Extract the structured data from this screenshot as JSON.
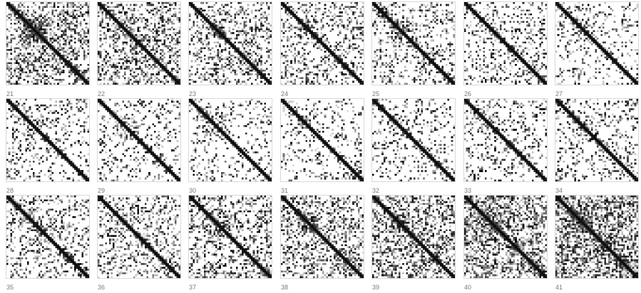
{
  "gallery": {
    "tile_labels": [
      "21",
      "22",
      "23",
      "24",
      "25",
      "26",
      "27",
      "28",
      "29",
      "30",
      "31",
      "32",
      "33",
      "34",
      "35",
      "36",
      "37",
      "38",
      "39",
      "40",
      "41"
    ],
    "cell_color": "#000000",
    "border_color": "#d9d9d9",
    "label_color": "#7a7a7a"
  }
}
